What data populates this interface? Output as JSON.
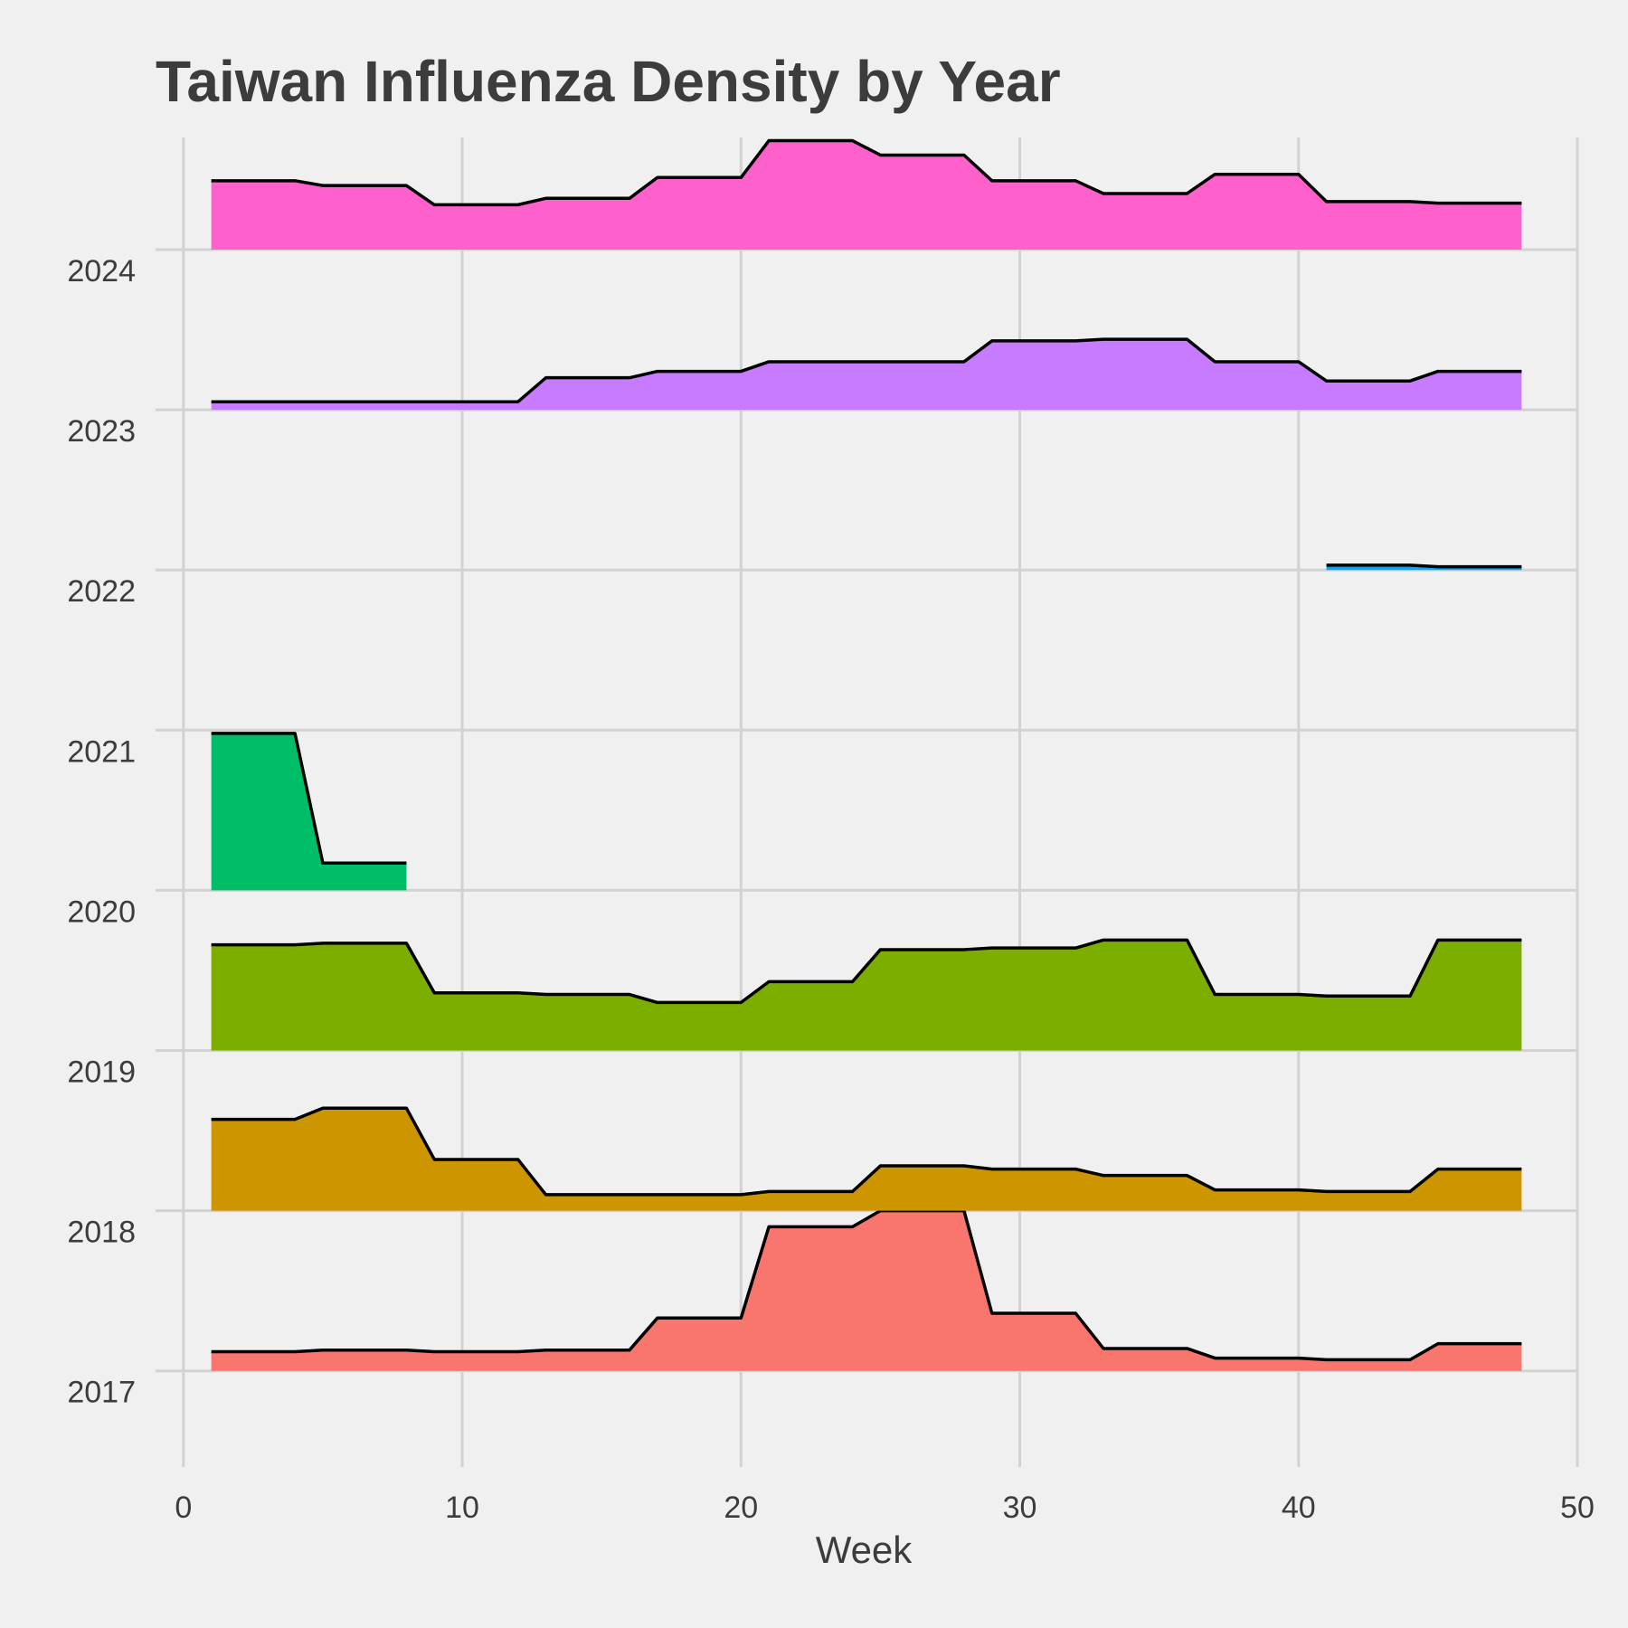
{
  "chart_data": {
    "type": "area",
    "title": "Taiwan Influenza Density by Year",
    "xlabel": "Week",
    "ylabel": "",
    "xlim": [
      -1,
      50
    ],
    "ylim": [
      2016.4,
      2024.7
    ],
    "xticks": [
      0,
      10,
      20,
      30,
      40,
      50
    ],
    "yticks": [
      2017,
      2018,
      2019,
      2020,
      2021,
      2022,
      2023,
      2024
    ],
    "grid": true,
    "legend": "none",
    "series": [
      {
        "year": 2017,
        "color": "#F8766D",
        "x": [
          1,
          4,
          5,
          8,
          9,
          12,
          13,
          16,
          17,
          20,
          21,
          24,
          25,
          28,
          29,
          32,
          33,
          36,
          37,
          40,
          41,
          44,
          45,
          48
        ],
        "y": [
          0.12,
          0.12,
          0.13,
          0.13,
          0.12,
          0.12,
          0.13,
          0.13,
          0.33,
          0.33,
          0.9,
          0.9,
          1.0,
          1.0,
          0.36,
          0.36,
          0.14,
          0.14,
          0.08,
          0.08,
          0.07,
          0.07,
          0.17,
          0.17
        ]
      },
      {
        "year": 2018,
        "color": "#CD9600",
        "x": [
          1,
          4,
          5,
          8,
          9,
          12,
          13,
          16,
          17,
          20,
          21,
          24,
          25,
          28,
          29,
          32,
          33,
          36,
          37,
          40,
          41,
          44,
          45,
          48
        ],
        "y": [
          0.57,
          0.57,
          0.64,
          0.64,
          0.32,
          0.32,
          0.1,
          0.1,
          0.1,
          0.1,
          0.12,
          0.12,
          0.28,
          0.28,
          0.26,
          0.26,
          0.22,
          0.22,
          0.13,
          0.13,
          0.12,
          0.12,
          0.26,
          0.26
        ]
      },
      {
        "year": 2019,
        "color": "#7CAE00",
        "x": [
          1,
          4,
          5,
          8,
          9,
          12,
          13,
          16,
          17,
          20,
          21,
          24,
          25,
          28,
          29,
          32,
          33,
          36,
          37,
          40,
          41,
          44,
          45,
          48
        ],
        "y": [
          0.66,
          0.66,
          0.67,
          0.67,
          0.36,
          0.36,
          0.35,
          0.35,
          0.3,
          0.3,
          0.43,
          0.43,
          0.63,
          0.63,
          0.64,
          0.64,
          0.69,
          0.69,
          0.35,
          0.35,
          0.34,
          0.34,
          0.69,
          0.69
        ]
      },
      {
        "year": 2020,
        "color": "#00BE67",
        "x": [
          1,
          4,
          5,
          8
        ],
        "y": [
          0.98,
          0.98,
          0.17,
          0.17
        ]
      },
      {
        "year": 2022,
        "color": "#00A9FF",
        "x": [
          41,
          44,
          45,
          48
        ],
        "y": [
          0.03,
          0.03,
          0.02,
          0.02
        ]
      },
      {
        "year": 2023,
        "color": "#C77CFF",
        "x": [
          1,
          4,
          5,
          8,
          9,
          12,
          13,
          16,
          17,
          20,
          21,
          24,
          25,
          28,
          29,
          32,
          33,
          36,
          37,
          40,
          41,
          44,
          45,
          48
        ],
        "y": [
          0.05,
          0.05,
          0.05,
          0.05,
          0.05,
          0.05,
          0.2,
          0.2,
          0.24,
          0.24,
          0.3,
          0.3,
          0.3,
          0.3,
          0.43,
          0.43,
          0.44,
          0.44,
          0.3,
          0.3,
          0.18,
          0.18,
          0.24,
          0.24
        ]
      },
      {
        "year": 2024,
        "color": "#FF61CC",
        "x": [
          1,
          4,
          5,
          8,
          9,
          12,
          13,
          16,
          17,
          20,
          21,
          24,
          25,
          28,
          29,
          32,
          33,
          36,
          37,
          40,
          41,
          44,
          45,
          48
        ],
        "y": [
          0.43,
          0.43,
          0.4,
          0.4,
          0.28,
          0.28,
          0.32,
          0.32,
          0.45,
          0.45,
          0.68,
          0.68,
          0.59,
          0.59,
          0.43,
          0.43,
          0.35,
          0.35,
          0.47,
          0.47,
          0.3,
          0.3,
          0.29,
          0.29
        ]
      }
    ]
  }
}
